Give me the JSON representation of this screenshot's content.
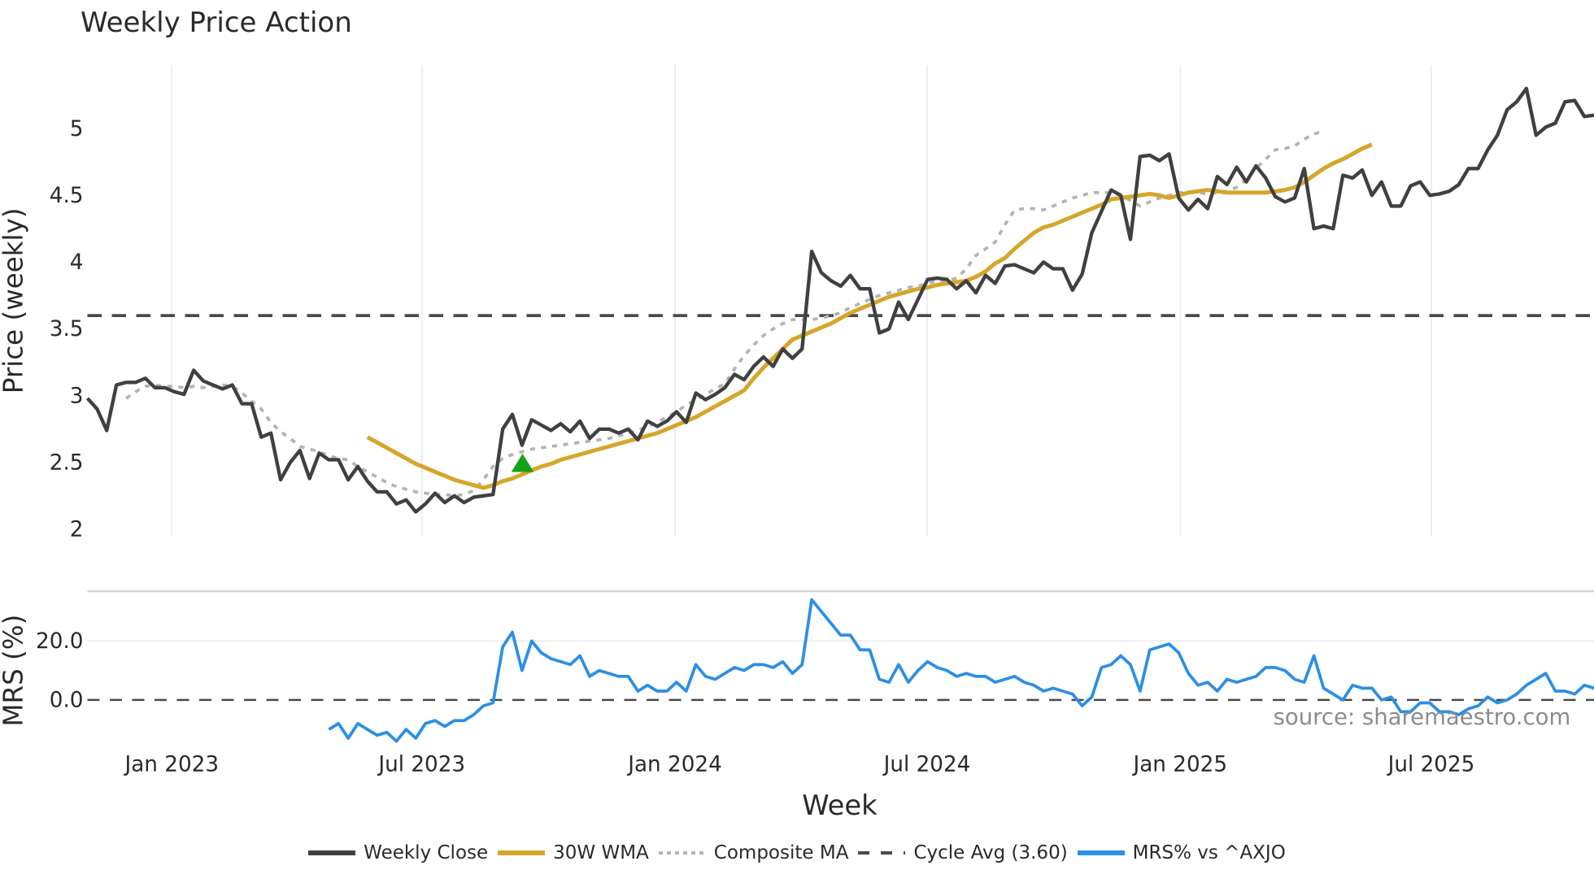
{
  "title": "Weekly Price Action",
  "source_text": "source: sharemaestro.com",
  "colors": {
    "close": "#404040",
    "wma": "#d6a62a",
    "composite": "#b4b4b4",
    "cycle": "#4a4a4a",
    "mrs": "#2b8fe6",
    "signal": "#16a016",
    "grid": "#ebedf0"
  },
  "legend": [
    {
      "key": "close",
      "label": "Weekly Close",
      "style": "solid"
    },
    {
      "key": "wma",
      "label": "30W WMA",
      "style": "solid"
    },
    {
      "key": "composite",
      "label": "Composite MA",
      "style": "dot"
    },
    {
      "key": "cycle",
      "label": "Cycle Avg (3.60)",
      "style": "dash"
    },
    {
      "key": "mrs",
      "label": "MRS% vs ^AXJO",
      "style": "solid"
    }
  ],
  "chart_data": [
    {
      "type": "line",
      "title": "Weekly Price Action",
      "xlabel": "Week",
      "ylabel": "Price (weekly)",
      "x_ticks": [
        "Jan 2023",
        "Jul 2023",
        "Jan 2024",
        "Jul 2024",
        "Jan 2025",
        "Jul 2025"
      ],
      "y_ticks": [
        "2",
        "2.5",
        "3",
        "3.5",
        "4",
        "4.5",
        "5"
      ],
      "ylim": [
        1.95,
        5.45
      ],
      "grid": true,
      "legend_position": "bottom",
      "x_start": "2022-10-28",
      "x_step": "1 week",
      "series": [
        {
          "name": "Weekly Close",
          "start_index": 0,
          "values": [
            2.98,
            2.9,
            2.74,
            3.08,
            3.1,
            3.1,
            3.13,
            3.06,
            3.06,
            3.03,
            3.01,
            3.19,
            3.11,
            3.08,
            3.05,
            3.08,
            2.94,
            2.94,
            2.69,
            2.72,
            2.37,
            2.5,
            2.59,
            2.38,
            2.57,
            2.52,
            2.52,
            2.37,
            2.47,
            2.36,
            2.28,
            2.28,
            2.19,
            2.22,
            2.13,
            2.19,
            2.27,
            2.2,
            2.25,
            2.2,
            2.24,
            2.25,
            2.26,
            2.75,
            2.86,
            2.63,
            2.82,
            2.78,
            2.74,
            2.79,
            2.73,
            2.81,
            2.68,
            2.75,
            2.75,
            2.72,
            2.75,
            2.67,
            2.81,
            2.77,
            2.81,
            2.88,
            2.8,
            3.02,
            2.97,
            3.01,
            3.06,
            3.16,
            3.12,
            3.22,
            3.29,
            3.22,
            3.35,
            3.28,
            3.35,
            4.08,
            3.92,
            3.86,
            3.82,
            3.9,
            3.8,
            3.8,
            3.47,
            3.5,
            3.7,
            3.57,
            3.72,
            3.87,
            3.88,
            3.87,
            3.8,
            3.86,
            3.77,
            3.9,
            3.84,
            3.97,
            3.98,
            3.95,
            3.92,
            4.0,
            3.95,
            3.95,
            3.79,
            3.91,
            4.22,
            4.38,
            4.54,
            4.5,
            4.17,
            4.79,
            4.8,
            4.76,
            4.81,
            4.48,
            4.39,
            4.47,
            4.4,
            4.64,
            4.58,
            4.71,
            4.6,
            4.72,
            4.63,
            4.49,
            4.45,
            4.48,
            4.7,
            4.25,
            4.27,
            4.25,
            4.65,
            4.63,
            4.69,
            4.5,
            4.6,
            4.42,
            4.42,
            4.57,
            4.6,
            4.5,
            4.51,
            4.53,
            4.58,
            4.7,
            4.7,
            4.84,
            4.95,
            5.14,
            5.2,
            5.3,
            4.95,
            5.01,
            5.04,
            5.2,
            5.21,
            5.09,
            5.1
          ]
        },
        {
          "name": "30W WMA",
          "start_index": 29,
          "values": [
            2.69,
            2.65,
            2.61,
            2.57,
            2.53,
            2.49,
            2.46,
            2.43,
            2.4,
            2.37,
            2.35,
            2.33,
            2.31,
            2.33,
            2.36,
            2.38,
            2.41,
            2.44,
            2.47,
            2.49,
            2.52,
            2.54,
            2.56,
            2.58,
            2.6,
            2.62,
            2.64,
            2.66,
            2.68,
            2.7,
            2.72,
            2.75,
            2.78,
            2.81,
            2.84,
            2.88,
            2.92,
            2.96,
            3.0,
            3.04,
            3.13,
            3.21,
            3.28,
            3.35,
            3.42,
            3.45,
            3.48,
            3.51,
            3.54,
            3.58,
            3.62,
            3.65,
            3.68,
            3.71,
            3.74,
            3.76,
            3.78,
            3.8,
            3.81,
            3.83,
            3.84,
            3.85,
            3.86,
            3.89,
            3.93,
            3.99,
            4.03,
            4.1,
            4.16,
            4.22,
            4.26,
            4.28,
            4.31,
            4.34,
            4.37,
            4.4,
            4.43,
            4.47,
            4.48,
            4.49,
            4.5,
            4.51,
            4.5,
            4.48,
            4.5,
            4.52,
            4.53,
            4.54,
            4.53,
            4.52,
            4.52,
            4.52,
            4.52,
            4.52,
            4.53,
            4.54,
            4.56,
            4.6,
            4.65,
            4.7,
            4.74,
            4.77,
            4.81,
            4.85,
            4.88
          ]
        },
        {
          "name": "Composite MA",
          "start_index": 4,
          "values": [
            2.98,
            3.03,
            3.07,
            3.08,
            3.07,
            3.07,
            3.06,
            3.07,
            3.06,
            3.07,
            3.08,
            3.07,
            3.02,
            2.96,
            2.9,
            2.8,
            2.73,
            2.68,
            2.62,
            2.6,
            2.58,
            2.55,
            2.53,
            2.52,
            2.47,
            2.43,
            2.39,
            2.35,
            2.32,
            2.3,
            2.28,
            2.27,
            2.26,
            2.26,
            2.25,
            2.26,
            2.29,
            2.37,
            2.47,
            2.53,
            2.56,
            2.58,
            2.6,
            2.61,
            2.62,
            2.63,
            2.64,
            2.65,
            2.66,
            2.67,
            2.68,
            2.7,
            2.72,
            2.74,
            2.77,
            2.8,
            2.84,
            2.88,
            2.93,
            2.97,
            3.01,
            3.05,
            3.09,
            3.2,
            3.3,
            3.38,
            3.45,
            3.5,
            3.54,
            3.57,
            3.57,
            3.57,
            3.58,
            3.6,
            3.62,
            3.66,
            3.69,
            3.72,
            3.75,
            3.77,
            3.79,
            3.81,
            3.82,
            3.84,
            3.86,
            3.86,
            3.88,
            3.95,
            4.05,
            4.1,
            4.15,
            4.28,
            4.39,
            4.4,
            4.4,
            4.39,
            4.42,
            4.45,
            4.48,
            4.5,
            4.52,
            4.52,
            4.52,
            4.5,
            4.46,
            4.42,
            4.45,
            4.48,
            4.5,
            4.52,
            4.52,
            4.52,
            4.51,
            4.52,
            4.53,
            4.56,
            4.62,
            4.7,
            4.77,
            4.84,
            4.85,
            4.87,
            4.92,
            4.96,
            4.98
          ]
        },
        {
          "name": "Cycle Avg (3.60)",
          "values": [
            3.6,
            3.6
          ]
        }
      ],
      "markers": [
        {
          "type": "triangle-up",
          "index": 45,
          "price": 2.49,
          "color": "#16a016"
        }
      ]
    },
    {
      "type": "line",
      "ylabel": "MRS (%)",
      "y_ticks": [
        "0.0",
        "20.0"
      ],
      "ylim": [
        -16,
        38
      ],
      "series": [
        {
          "name": "MRS% vs ^AXJO",
          "start_index": 25,
          "values": [
            -10,
            -8,
            -13,
            -8,
            -10,
            -12,
            -11,
            -14,
            -10,
            -13,
            -8,
            -7,
            -9,
            -7,
            -7,
            -5,
            -2,
            -1,
            18,
            23,
            10,
            20,
            16,
            14,
            13,
            12,
            15,
            8,
            10,
            9,
            8,
            8,
            3,
            5,
            3,
            3,
            6,
            3,
            12,
            8,
            7,
            9,
            11,
            10,
            12,
            12,
            11,
            13,
            9,
            12,
            34,
            30,
            26,
            22,
            22,
            17,
            17,
            7,
            6,
            12,
            6,
            10,
            13,
            11,
            10,
            8,
            9,
            8,
            8,
            6,
            7,
            8,
            6,
            5,
            3,
            4,
            3,
            2,
            -2,
            1,
            11,
            12,
            15,
            12,
            3,
            17,
            18,
            19,
            16,
            9,
            5,
            6,
            3,
            7,
            6,
            7,
            8,
            11,
            11,
            10,
            7,
            6,
            15,
            4,
            2,
            0,
            5,
            4,
            4,
            0,
            1,
            -4,
            -4,
            -1,
            -1,
            -4,
            -4,
            -5,
            -3,
            -2,
            1,
            -1,
            0,
            2,
            5,
            7,
            9,
            3,
            3,
            2,
            5,
            4,
            1,
            2
          ]
        }
      ]
    }
  ]
}
